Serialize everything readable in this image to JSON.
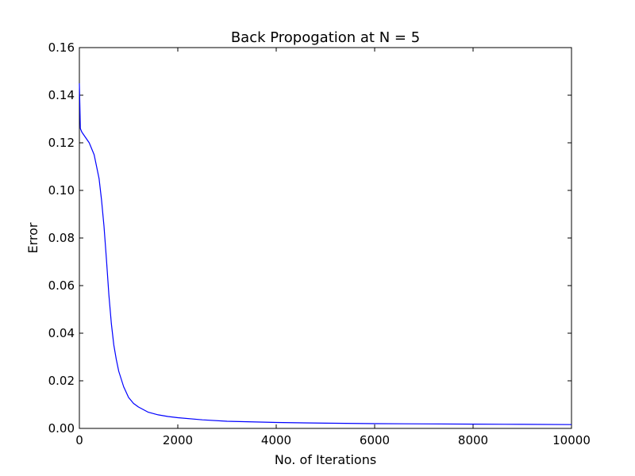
{
  "chart_data": {
    "type": "line",
    "title": "Back Propogation at N = 5",
    "xlabel": "No. of Iterations",
    "ylabel": "Error",
    "xlim": [
      0,
      10000
    ],
    "ylim": [
      0.0,
      0.16
    ],
    "x_ticks": [
      0,
      2000,
      4000,
      6000,
      8000,
      10000
    ],
    "x_tick_labels": [
      "0",
      "2000",
      "4000",
      "6000",
      "8000",
      "10000"
    ],
    "y_ticks": [
      0.0,
      0.02,
      0.04,
      0.06,
      0.08,
      0.1,
      0.12,
      0.14,
      0.16
    ],
    "y_tick_labels": [
      "0.00",
      "0.02",
      "0.04",
      "0.06",
      "0.08",
      "0.10",
      "0.12",
      "0.14",
      "0.16"
    ],
    "grid": false,
    "legend": "none",
    "series": [
      {
        "color": "#0000ff",
        "x": [
          0,
          20,
          50,
          100,
          200,
          300,
          400,
          450,
          500,
          550,
          600,
          650,
          700,
          750,
          800,
          900,
          1000,
          1100,
          1200,
          1400,
          1600,
          1800,
          2000,
          2500,
          3000,
          4000,
          5000,
          6000,
          7000,
          8000,
          9000,
          10000
        ],
        "y": [
          0.145,
          0.126,
          0.1245,
          0.123,
          0.12,
          0.115,
          0.105,
          0.096,
          0.085,
          0.071,
          0.056,
          0.044,
          0.035,
          0.029,
          0.024,
          0.0175,
          0.013,
          0.0105,
          0.009,
          0.0068,
          0.0057,
          0.005,
          0.0045,
          0.0036,
          0.003,
          0.0025,
          0.0022,
          0.002,
          0.0019,
          0.0018,
          0.0017,
          0.0016
        ]
      }
    ]
  }
}
